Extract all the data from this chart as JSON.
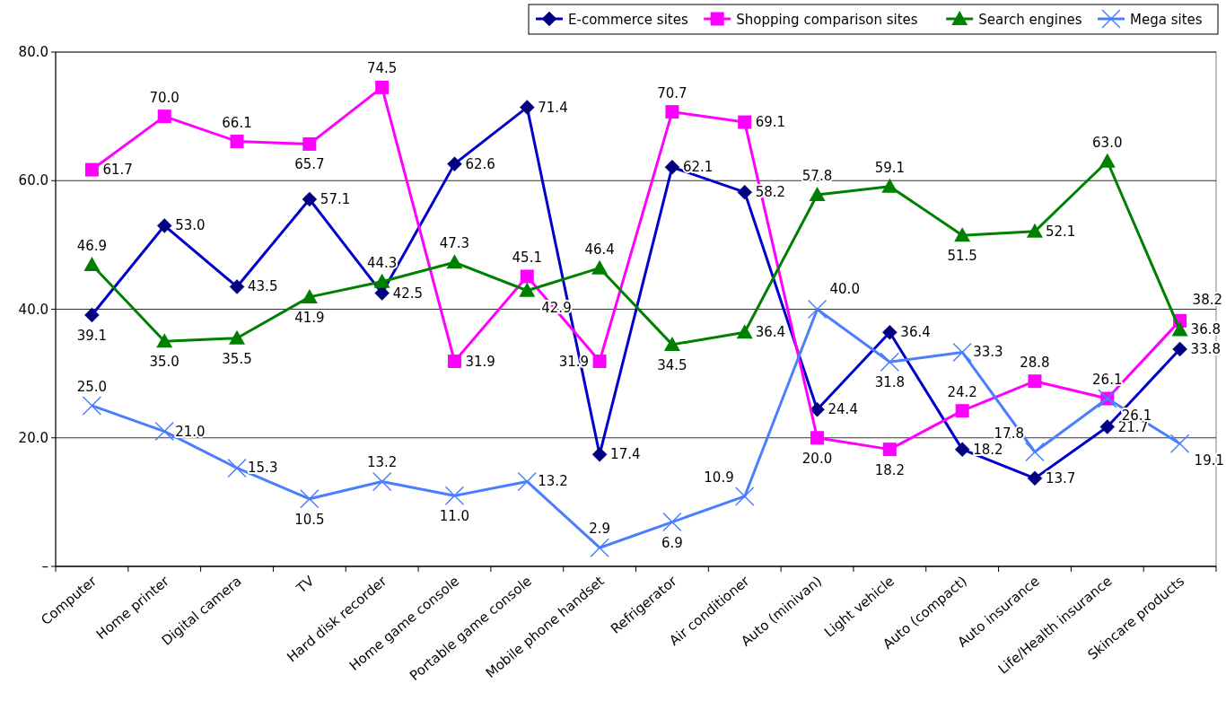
{
  "chart_data": {
    "type": "line",
    "categories": [
      "Computer",
      "Home printer",
      "Digital camera",
      "TV",
      "Hard disk recorder",
      "Home game console",
      "Portable game console",
      "Mobile phone handset",
      "Refrigerator",
      "Air conditioner",
      "Auto (minivan)",
      "Light vehicle",
      "Auto (compact)",
      "Auto insurance",
      "Life/Health insurance",
      "Skincare products"
    ],
    "ylim": [
      0,
      80
    ],
    "yticks": [
      {
        "value": 0,
        "label": "–"
      },
      {
        "value": 20,
        "label": "20.0"
      },
      {
        "value": 40,
        "label": "40.0"
      },
      {
        "value": 60,
        "label": "60.0"
      },
      {
        "value": 80,
        "label": "80.0"
      }
    ],
    "grid": "y",
    "legend": "top right",
    "line_style": "solid",
    "series": [
      {
        "name": "E-commerce sites",
        "color": "#0000cc",
        "marker": "diamond",
        "values": [
          39.1,
          53.0,
          43.5,
          57.1,
          42.5,
          62.6,
          71.4,
          17.4,
          62.1,
          58.2,
          24.4,
          36.4,
          18.2,
          13.7,
          21.7,
          33.8
        ],
        "value_labels": [
          "39.1",
          "53.0",
          "43.5",
          "57.1",
          "42.5",
          "62.6",
          "71.4",
          "17.4",
          "62.1",
          "58.2",
          "24.4",
          "36.4",
          "18.2",
          "13.7",
          "21.7",
          "33.8"
        ]
      },
      {
        "name": "Shopping comparison sites",
        "color": "#ff00ff",
        "marker": "square",
        "values": [
          61.7,
          70.0,
          66.1,
          65.7,
          74.5,
          31.9,
          45.1,
          31.9,
          70.7,
          69.1,
          20.0,
          18.2,
          24.2,
          28.8,
          26.1,
          38.2
        ],
        "value_labels": [
          "61.7",
          "70.0",
          "66.1",
          "65.7",
          "74.5",
          "31.9",
          "45.1",
          "31.9",
          "70.7",
          "69.1",
          "20.0",
          "18.2",
          "24.2",
          "28.8",
          "26.1",
          "38.2"
        ]
      },
      {
        "name": "Search engines",
        "color": "#008000",
        "marker": "triangle",
        "values": [
          46.9,
          35.0,
          35.5,
          41.9,
          44.3,
          47.3,
          42.9,
          46.4,
          34.5,
          36.4,
          57.8,
          59.1,
          51.5,
          52.1,
          63.0,
          36.8
        ],
        "value_labels": [
          "46.9",
          "35.0",
          "35.5",
          "41.9",
          "44.3",
          "47.3",
          "42.9",
          "46.4",
          "34.5",
          "36.4",
          "57.8",
          "59.1",
          "51.5",
          "52.1",
          "63.0",
          "36.8"
        ]
      },
      {
        "name": "Mega sites",
        "color": "#4a7eff",
        "marker": "cross",
        "values": [
          25.0,
          21.0,
          15.3,
          10.5,
          13.2,
          11.0,
          13.2,
          2.9,
          6.9,
          10.9,
          40.0,
          31.8,
          33.3,
          17.8,
          26.1,
          19.1
        ],
        "value_labels": [
          "25.0",
          "21.0",
          "15.3",
          "10.5",
          "13.2",
          "11.0",
          "13.2",
          "2.9",
          "6.9",
          "10.9",
          "40.0",
          "31.8",
          "33.3",
          "17.8",
          "26.1",
          "19.1"
        ]
      }
    ]
  }
}
